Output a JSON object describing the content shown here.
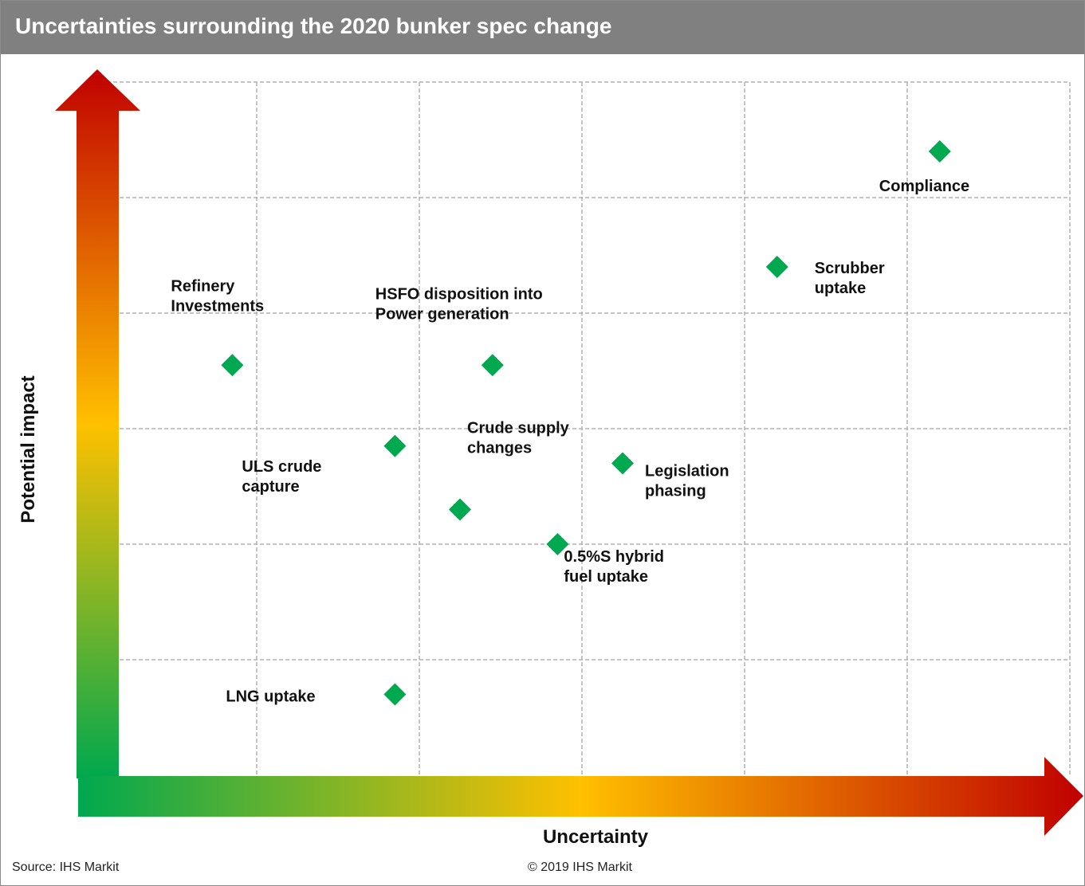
{
  "header": {
    "title": "Uncertainties surrounding the 2020 bunker spec change"
  },
  "footer": {
    "source": "Source: IHS Markit",
    "copyright": "© 2019 IHS Markit"
  },
  "colors": {
    "title_bar": "#808080",
    "marker": "#00a84f",
    "gradient_low": "#00a84f",
    "gradient_mid": "#ffc000",
    "gradient_high": "#c00000",
    "grid": "#b0b0b0"
  },
  "chart_data": {
    "type": "scatter",
    "title": "Uncertainties surrounding the 2020 bunker spec change",
    "xlabel": "Uncertainty",
    "ylabel": "Potential impact",
    "xlim": [
      0,
      6
    ],
    "ylim": [
      0,
      6
    ],
    "grid": true,
    "points": [
      {
        "label": "Compliance",
        "x": 5.2,
        "y": 5.4
      },
      {
        "label": "Scrubber uptake",
        "x": 4.2,
        "y": 4.4
      },
      {
        "label": "Refinery Investments",
        "x": 0.85,
        "y": 3.55
      },
      {
        "label": "HSFO disposition into Power generation",
        "x": 2.45,
        "y": 3.55
      },
      {
        "label": "ULS crude capture",
        "x": 1.85,
        "y": 2.85
      },
      {
        "label": "Crude supply changes",
        "x": 2.25,
        "y": 2.3
      },
      {
        "label": "Legislation phasing",
        "x": 3.25,
        "y": 2.7
      },
      {
        "label": "0.5%S hybrid fuel uptake",
        "x": 2.85,
        "y": 2.0
      },
      {
        "label": "LNG uptake",
        "x": 1.85,
        "y": 0.7
      }
    ]
  }
}
